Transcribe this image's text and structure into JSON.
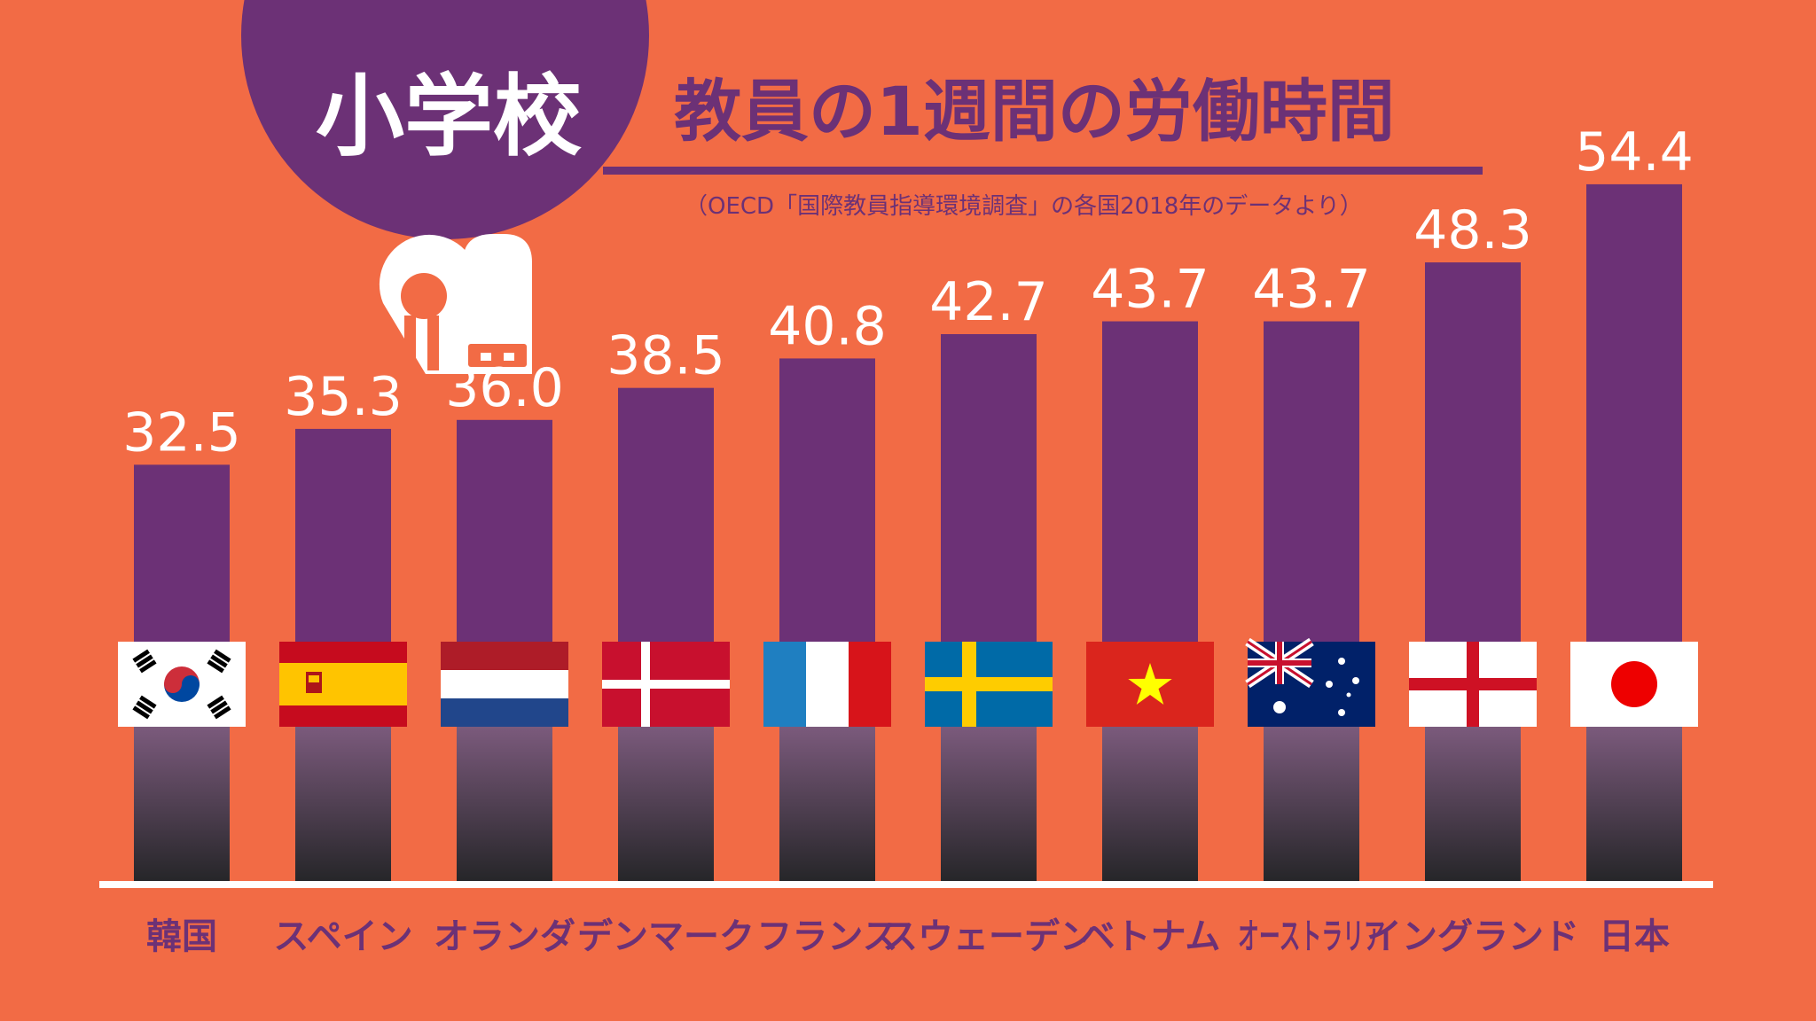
{
  "header": {
    "badge": "小学校",
    "title": "教員の1週間の労働時間",
    "source": "（OECD「国際教員指導環境調査」の各国2018年のデータより）"
  },
  "colors": {
    "background": "#f26b45",
    "accent": "#6c3176",
    "text_light": "#ffffff"
  },
  "icons": {
    "school": "school-backpack-icon"
  },
  "chart_data": {
    "type": "bar",
    "categories": [
      "韓国",
      "スペイン",
      "オランダ",
      "デンマーク",
      "フランス",
      "スウェーデン",
      "ベトナム",
      "オーストラリア",
      "イングランド",
      "日本"
    ],
    "values": [
      32.5,
      35.3,
      36.0,
      38.5,
      40.8,
      42.7,
      43.7,
      43.7,
      48.3,
      54.4
    ],
    "value_labels": [
      "32.5",
      "35.3",
      "36.0",
      "38.5",
      "40.8",
      "42.7",
      "43.7",
      "43.7",
      "48.3",
      "54.4"
    ],
    "flags": [
      "korea-flag",
      "spain-flag",
      "netherlands-flag",
      "denmark-flag",
      "france-flag",
      "sweden-flag",
      "vietnam-flag",
      "australia-flag",
      "england-flag",
      "japan-flag"
    ],
    "title": "教員の1週間の労働時間",
    "xlabel": "",
    "ylabel": "",
    "grid": false,
    "legend": "none"
  }
}
